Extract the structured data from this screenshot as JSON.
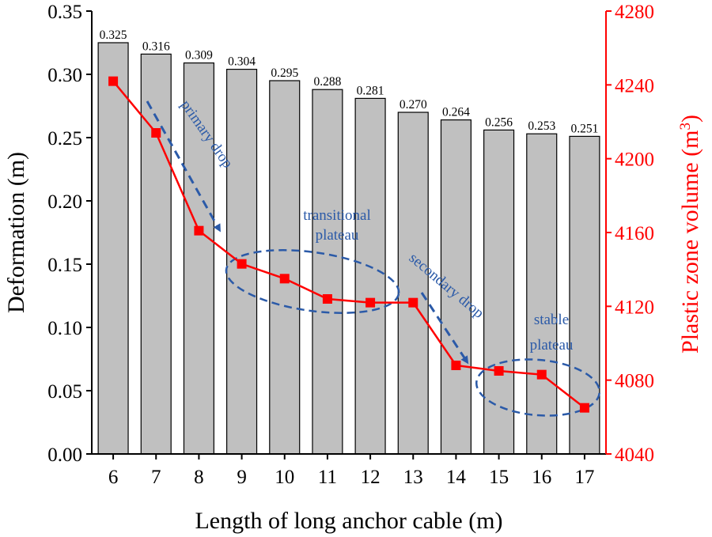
{
  "chart_data": {
    "type": "bar+line",
    "xlabel": "Length of long anchor cable (m)",
    "ylabel_left": "Deformation (m)",
    "ylabel_right": "Plastic zone volume (m",
    "ylabel_right_sup": "3",
    "ylabel_right_close": ")",
    "categories": [
      "6",
      "7",
      "8",
      "9",
      "10",
      "11",
      "12",
      "13",
      "14",
      "15",
      "16",
      "17"
    ],
    "bar_series": {
      "name": "Deformation",
      "values": [
        0.325,
        0.316,
        0.309,
        0.304,
        0.295,
        0.288,
        0.281,
        0.27,
        0.264,
        0.256,
        0.253,
        0.251
      ],
      "labels": [
        "0.325",
        "0.316",
        "0.309",
        "0.304",
        "0.295",
        "0.288",
        "0.281",
        "0.270",
        "0.264",
        "0.256",
        "0.253",
        "0.251"
      ]
    },
    "line_series": {
      "name": "Plastic zone volume",
      "values": [
        4242,
        4214,
        4161,
        4143,
        4135,
        4124,
        4122,
        4122,
        4088,
        4085,
        4083,
        4065
      ]
    },
    "ylim_left": [
      0,
      0.35
    ],
    "yticks_left": [
      "0.00",
      "0.05",
      "0.10",
      "0.15",
      "0.20",
      "0.25",
      "0.30",
      "0.35"
    ],
    "ylim_right": [
      4040,
      4280
    ],
    "yticks_right": [
      "4040",
      "4080",
      "4120",
      "4160",
      "4200",
      "4240",
      "4280"
    ],
    "annotations": {
      "primary_drop": "primary drop",
      "transitional_line1": "transitional",
      "transitional_line2": "plateau",
      "secondary_drop": "secondary drop",
      "stable_line1": "stable",
      "stable_line2": "plateau"
    },
    "colors": {
      "bar_fill": "#c0c0c0",
      "line": "#ff0000",
      "right_axis": "#ff0000",
      "annotation": "#2b5aa8"
    }
  }
}
